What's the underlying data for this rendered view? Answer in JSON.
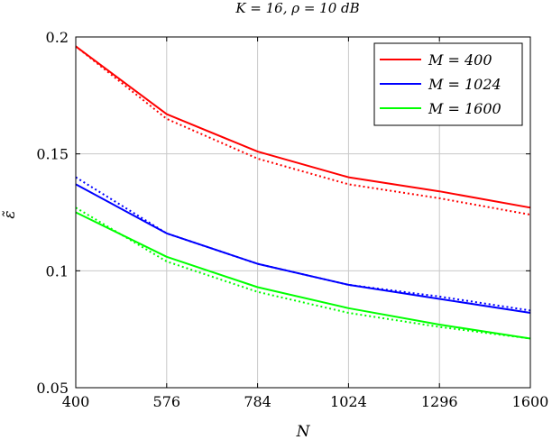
{
  "chart_data": {
    "type": "line",
    "title": "K = 16, ρ = 10 dB",
    "xlabel": "N",
    "ylabel": "ε̃",
    "x": [
      400,
      576,
      784,
      1024,
      1296,
      1600
    ],
    "x_tick_labels": [
      "400",
      "576",
      "784",
      "1024",
      "1296",
      "1600"
    ],
    "y_ticks": [
      0.05,
      0.1,
      0.15,
      0.2
    ],
    "y_tick_labels": [
      "0.05",
      "0.1",
      "0.15",
      "0.2"
    ],
    "ylim": [
      0.05,
      0.2
    ],
    "grid": true,
    "legend_position": "top-right",
    "series": [
      {
        "name": "M = 400",
        "style": "solid",
        "color": "#ff0000",
        "values": [
          0.196,
          0.167,
          0.151,
          0.14,
          0.134,
          0.127
        ]
      },
      {
        "name": "",
        "style": "dotted",
        "color": "#ff0000",
        "values": [
          0.196,
          0.165,
          0.148,
          0.137,
          0.131,
          0.124
        ]
      },
      {
        "name": "M = 1024",
        "style": "solid",
        "color": "#0000ff",
        "values": [
          0.137,
          0.116,
          0.103,
          0.094,
          0.088,
          0.082
        ]
      },
      {
        "name": "",
        "style": "dotted",
        "color": "#0000ff",
        "values": [
          0.14,
          0.116,
          0.103,
          0.094,
          0.089,
          0.083
        ]
      },
      {
        "name": "M = 1600",
        "style": "solid",
        "color": "#00ff00",
        "values": [
          0.125,
          0.106,
          0.093,
          0.084,
          0.077,
          0.071
        ]
      },
      {
        "name": "",
        "style": "dotted",
        "color": "#00ff00",
        "values": [
          0.127,
          0.104,
          0.091,
          0.082,
          0.076,
          0.071
        ]
      }
    ]
  }
}
